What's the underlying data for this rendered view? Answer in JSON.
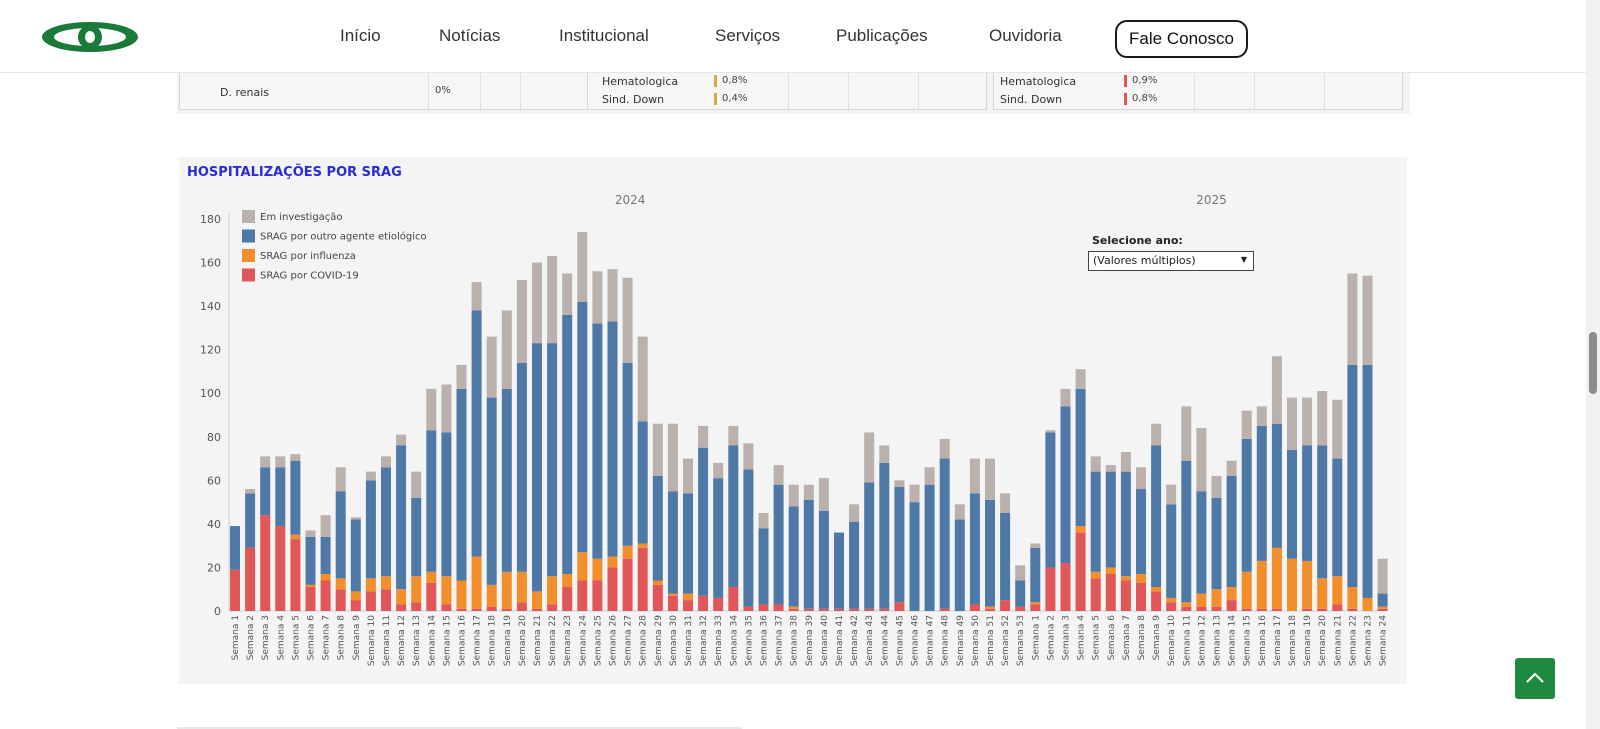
{
  "nav": {
    "items": [
      "Início",
      "Notícias",
      "Institucional",
      "Serviços",
      "Publicações",
      "Ouvidoria"
    ],
    "contact_label": "Fale Conosco"
  },
  "top_tables": {
    "left_row": {
      "label": "D. renais",
      "value": "0%"
    },
    "middle_rows": [
      {
        "label": "Hematologica",
        "value": "0,8%",
        "color": "#d4a94a"
      },
      {
        "label": "Sind. Down",
        "value": "0,4%",
        "color": "#d4a94a"
      }
    ],
    "right_rows": [
      {
        "label": "Hematologica",
        "value": "0,9%",
        "color": "#e15759"
      },
      {
        "label": "Sind. Down",
        "value": "0,8%",
        "color": "#e15759"
      }
    ]
  },
  "selector": {
    "label": "Selecione ano:",
    "value": "(Valores múltiplos)"
  },
  "colors": {
    "covid": "#e15759",
    "influenza": "#f28e2b",
    "outro": "#4e79a7",
    "investigacao": "#bab0ac",
    "title": "#2b2bd6",
    "accent_button": "#1f8a3f"
  },
  "chart_data": {
    "type": "bar",
    "stacked": true,
    "title": "HOSPITALIZAÇÕES POR SRAG",
    "panels": [
      "2024",
      "2025"
    ],
    "ylim": [
      0,
      180
    ],
    "yticks": [
      0,
      20,
      40,
      60,
      80,
      100,
      120,
      140,
      160,
      180
    ],
    "legend_position": "top-left",
    "categories_2024": [
      "Semana 1",
      "Semana 2",
      "Semana 3",
      "Semana 4",
      "Semana 5",
      "Semana 6",
      "Semana 7",
      "Semana 8",
      "Semana 9",
      "Semana 10",
      "Semana 11",
      "Semana 12",
      "Semana 13",
      "Semana 14",
      "Semana 15",
      "Semana 16",
      "Semana 17",
      "Semana 18",
      "Semana 19",
      "Semana 20",
      "Semana 21",
      "Semana 22",
      "Semana 23",
      "Semana 24",
      "Semana 25",
      "Semana 26",
      "Semana 27",
      "Semana 28",
      "Semana 29",
      "Semana 30",
      "Semana 31",
      "Semana 32",
      "Semana 33",
      "Semana 34",
      "Semana 35",
      "Semana 36",
      "Semana 37",
      "Semana 38",
      "Semana 39",
      "Semana 40",
      "Semana 41",
      "Semana 42",
      "Semana 43",
      "Semana 44",
      "Semana 45",
      "Semana 46",
      "Semana 47",
      "Semana 48",
      "Semana 49",
      "Semana 50",
      "Semana 51",
      "Semana 52",
      "Semana 53"
    ],
    "categories_2025": [
      "Semana 1",
      "Semana 2",
      "Semana 3",
      "Semana 4",
      "Semana 5",
      "Semana 6",
      "Semana 7",
      "Semana 8",
      "Semana 9",
      "Semana 10",
      "Semana 11",
      "Semana 12",
      "Semana 13",
      "Semana 14",
      "Semana 15",
      "Semana 16",
      "Semana 17",
      "Semana 18",
      "Semana 19",
      "Semana 20",
      "Semana 21",
      "Semana 22",
      "Semana 23",
      "Semana 24"
    ],
    "series": [
      {
        "name": "SRAG por COVID-19",
        "key": "covid",
        "values": [
          19,
          29,
          44,
          39,
          33,
          11,
          14,
          10,
          5,
          9,
          10,
          3,
          4,
          13,
          3,
          1,
          1,
          2,
          1,
          4,
          1,
          3,
          11,
          14,
          14,
          20,
          24,
          29,
          12,
          7,
          5,
          7,
          6,
          11,
          2,
          3,
          3,
          1,
          1,
          1,
          1,
          1,
          1,
          1,
          4,
          0,
          0,
          1,
          0,
          3,
          1,
          5,
          2,
          3,
          20,
          22,
          36,
          15,
          17,
          14,
          13,
          9,
          4,
          2,
          2,
          2,
          5,
          1,
          1,
          1,
          0,
          1,
          1,
          3,
          1,
          0,
          1
        ]
      },
      {
        "name": "SRAG por influenza",
        "key": "influenza",
        "values": [
          0,
          0,
          0,
          0,
          2,
          1,
          3,
          5,
          4,
          6,
          6,
          7,
          12,
          5,
          13,
          13,
          24,
          10,
          17,
          14,
          8,
          13,
          6,
          13,
          10,
          5,
          6,
          2,
          2,
          1,
          3,
          0,
          0,
          0,
          0,
          0,
          0,
          1,
          0,
          0,
          0,
          0,
          0,
          0,
          0,
          0,
          0,
          0,
          0,
          0,
          1,
          0,
          0,
          1,
          0,
          0,
          3,
          3,
          3,
          2,
          4,
          2,
          2,
          2,
          6,
          8,
          6,
          17,
          22,
          28,
          24,
          22,
          14,
          13,
          10,
          6,
          1
        ]
      },
      {
        "name": "SRAG por outro agente etiológico",
        "key": "outro",
        "values": [
          20,
          25,
          22,
          27,
          34,
          22,
          17,
          40,
          33,
          45,
          50,
          66,
          36,
          65,
          66,
          88,
          113,
          86,
          84,
          96,
          114,
          107,
          119,
          115,
          108,
          108,
          84,
          56,
          48,
          47,
          46,
          68,
          55,
          65,
          63,
          35,
          55,
          46,
          50,
          45,
          35,
          40,
          58,
          67,
          53,
          50,
          58,
          69,
          42,
          51,
          49,
          40,
          12,
          25,
          62,
          72,
          63,
          46,
          44,
          48,
          39,
          65,
          43,
          65,
          47,
          42,
          51,
          61,
          62,
          57,
          50,
          53,
          61,
          54,
          102,
          107,
          6
        ]
      },
      {
        "name": "Em investigação",
        "key": "investigacao",
        "values": [
          0,
          2,
          5,
          5,
          3,
          3,
          10,
          11,
          1,
          4,
          5,
          5,
          12,
          19,
          22,
          11,
          13,
          28,
          36,
          38,
          37,
          40,
          19,
          32,
          24,
          24,
          39,
          39,
          24,
          31,
          16,
          10,
          7,
          9,
          12,
          7,
          9,
          10,
          7,
          15,
          0,
          8,
          23,
          8,
          3,
          8,
          8,
          9,
          7,
          16,
          19,
          9,
          7,
          2,
          1,
          8,
          9,
          7,
          3,
          9,
          10,
          10,
          9,
          25,
          29,
          10,
          7,
          13,
          9,
          31,
          24,
          22,
          25,
          27,
          42,
          41,
          16
        ]
      }
    ],
    "legend": [
      "Em investigação",
      "SRAG por outro agente etiológico",
      "SRAG por influenza",
      "SRAG por COVID-19"
    ]
  }
}
